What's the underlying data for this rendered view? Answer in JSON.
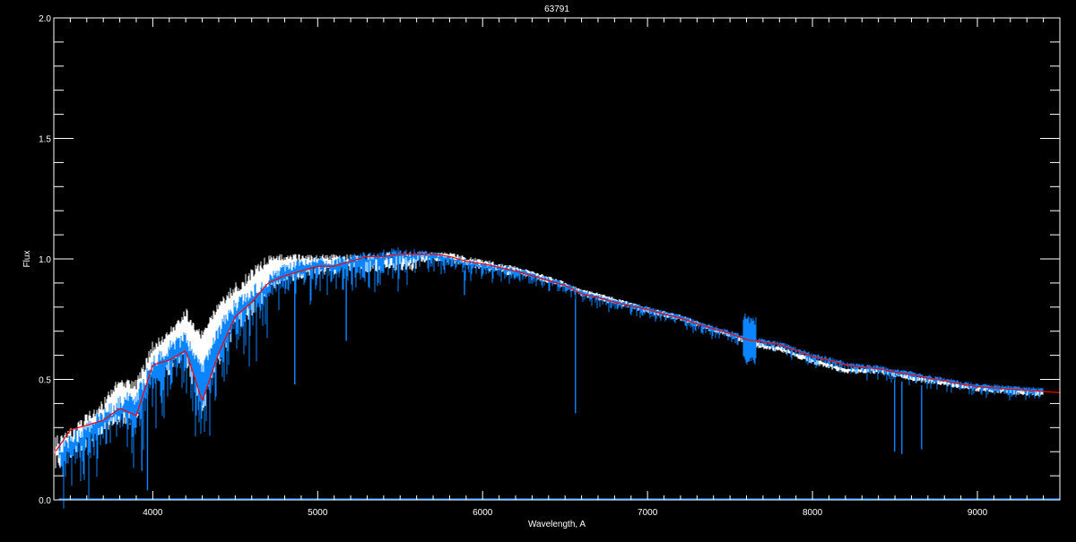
{
  "chart_data": {
    "type": "line",
    "title": "63791",
    "xlabel": "Wavelength, A",
    "ylabel": "Flux",
    "xlim": [
      3400,
      9500
    ],
    "ylim": [
      0.0,
      2.0
    ],
    "x_ticks": [
      4000,
      5000,
      6000,
      7000,
      8000,
      9000
    ],
    "x_tick_labels": [
      "4000",
      "5000",
      "6000",
      "7000",
      "8000",
      "9000"
    ],
    "x_minor_step": 100,
    "y_ticks": [
      0.0,
      0.5,
      1.0,
      1.5,
      2.0
    ],
    "y_tick_labels": [
      "0.0",
      "0.5",
      "1.0",
      "1.5",
      "2.0"
    ],
    "y_minor_step": 0.1,
    "grid": false,
    "background": "#000000",
    "axis_color": "#ffffff",
    "x": [
      3400,
      3500,
      3600,
      3700,
      3800,
      3900,
      4000,
      4100,
      4200,
      4300,
      4400,
      4500,
      4600,
      4700,
      4800,
      4900,
      5000,
      5100,
      5200,
      5300,
      5400,
      5500,
      5600,
      5700,
      5800,
      5900,
      6000,
      6100,
      6200,
      6300,
      6400,
      6500,
      6600,
      6700,
      6800,
      6900,
      7000,
      7100,
      7200,
      7300,
      7400,
      7500,
      7600,
      7700,
      7800,
      7900,
      8000,
      8100,
      8200,
      8300,
      8400,
      8500,
      8600,
      8700,
      8800,
      8900,
      9000,
      9100,
      9200,
      9300,
      9400,
      9500
    ],
    "series": [
      {
        "color": "#ffffff",
        "values": [
          0.26,
          0.3,
          0.36,
          0.42,
          0.52,
          0.5,
          0.66,
          0.72,
          0.8,
          0.7,
          0.84,
          0.9,
          0.96,
          1.02,
          1.02,
          1.02,
          1.02,
          1.02,
          1.02,
          1.02,
          1.03,
          1.03,
          1.03,
          1.03,
          1.03,
          1.01,
          1.0,
          0.985,
          0.97,
          0.95,
          0.93,
          0.905,
          0.875,
          0.86,
          0.84,
          0.82,
          0.8,
          0.785,
          0.77,
          0.745,
          0.72,
          0.7,
          0.67,
          0.65,
          0.64,
          0.615,
          0.59,
          0.57,
          0.55,
          0.55,
          0.55,
          0.535,
          0.52,
          0.51,
          0.5,
          0.485,
          0.475,
          0.47,
          0.465,
          0.46,
          0.455,
          null
        ],
        "lines": [
          [
            4861,
            0.48
          ]
        ]
      },
      {
        "color": "#0a84ff",
        "values": [
          0.24,
          0.28,
          0.33,
          0.38,
          0.44,
          0.46,
          0.6,
          0.66,
          0.7,
          0.58,
          0.74,
          0.84,
          0.9,
          0.94,
          0.98,
          1.0,
          1.01,
          1.01,
          1.02,
          1.03,
          1.04,
          1.05,
          1.04,
          1.03,
          1.02,
          1.0,
          0.99,
          0.98,
          0.965,
          0.945,
          0.925,
          0.905,
          0.87,
          0.855,
          0.835,
          0.82,
          0.805,
          0.785,
          0.77,
          0.745,
          0.725,
          0.705,
          0.68,
          0.67,
          0.66,
          0.635,
          0.61,
          0.595,
          0.575,
          0.565,
          0.56,
          0.545,
          0.535,
          0.52,
          0.51,
          0.495,
          0.485,
          0.48,
          0.475,
          0.47,
          0.465,
          null
        ],
        "lines": [
          [
            3934,
            0.12
          ],
          [
            3968,
            0.04
          ],
          [
            4861,
            0.48
          ],
          [
            5173,
            0.66
          ],
          [
            5890,
            0.85
          ],
          [
            6563,
            0.36
          ],
          [
            7605,
            0.58
          ],
          [
            8498,
            0.2
          ],
          [
            8542,
            0.19
          ],
          [
            8662,
            0.21
          ]
        ]
      },
      {
        "color": "#ff0000",
        "values": [
          0.19,
          0.29,
          0.31,
          0.33,
          0.38,
          0.35,
          0.56,
          0.58,
          0.62,
          0.41,
          0.61,
          0.76,
          0.82,
          0.9,
          0.93,
          0.95,
          0.97,
          0.97,
          0.99,
          1.01,
          1.01,
          1.02,
          1.02,
          1.02,
          1.01,
          0.99,
          0.98,
          0.965,
          0.95,
          0.93,
          0.91,
          0.89,
          0.855,
          0.84,
          0.82,
          0.805,
          0.79,
          0.77,
          0.755,
          0.73,
          0.71,
          0.69,
          0.665,
          0.655,
          0.645,
          0.62,
          0.595,
          0.58,
          0.56,
          0.55,
          0.545,
          0.53,
          0.52,
          0.505,
          0.495,
          0.48,
          0.47,
          0.465,
          0.46,
          0.455,
          0.45,
          0.445
        ]
      }
    ]
  }
}
